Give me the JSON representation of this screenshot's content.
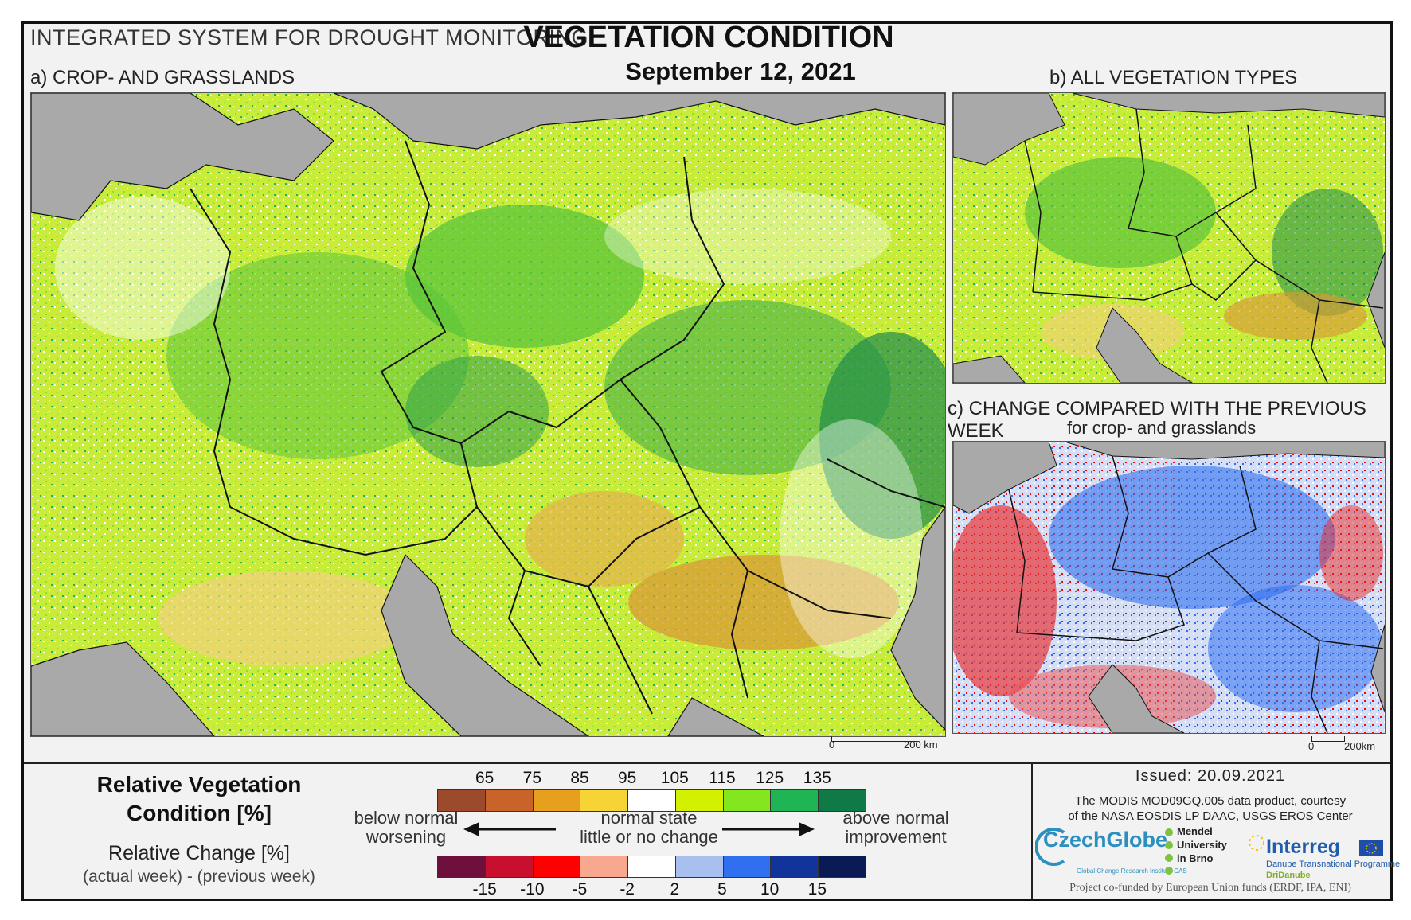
{
  "header": {
    "system_title": "INTEGRATED SYSTEM FOR DROUGHT MONITORING",
    "title": "VEGETATION CONDITION",
    "date": "September 12, 2021"
  },
  "panels": {
    "a_label": "a) CROP- AND GRASSLANDS",
    "b_label": "b) ALL VEGETATION TYPES",
    "c_label": "c) CHANGE COMPARED WITH THE PREVIOUS WEEK",
    "c_sublabel": "for crop- and grasslands"
  },
  "scale": {
    "a_zero": "0",
    "a_length": "200 km",
    "c_zero": "0",
    "c_length": "200km"
  },
  "legend": {
    "rvc_title_line1": "Relative Vegetation",
    "rvc_title_line2": "Condition [%]",
    "rc_title": "Relative Change [%]",
    "rc_subtitle": "(actual week) - (previous week)",
    "left_note_line1": "below normal",
    "left_note_line2": "worsening",
    "center_note_line1": "normal state",
    "center_note_line2": "little or no change",
    "right_note_line1": "above normal",
    "right_note_line2": "improvement",
    "rvc_ticks": [
      "65",
      "75",
      "85",
      "95",
      "105",
      "115",
      "125",
      "135"
    ],
    "rvc_colors": [
      "#9c4a2c",
      "#c8642a",
      "#e6a01e",
      "#f6d436",
      "#ffffff",
      "#d2f000",
      "#84e61e",
      "#1fb454",
      "#0f7a46"
    ],
    "rc_ticks": [
      "-15",
      "-10",
      "-5",
      "-2",
      "2",
      "5",
      "10",
      "15"
    ],
    "rc_colors": [
      "#6e0f3c",
      "#c8102e",
      "#ff0000",
      "#f7a88e",
      "#ffffff",
      "#a9bff0",
      "#2f6ff0",
      "#10349a",
      "#0a1a55"
    ]
  },
  "footer": {
    "issued": "Issued: 20.09.2021",
    "courtesy_line1": "The MODIS MOD09GQ.005 data product, courtesy",
    "courtesy_line2": "of the NASA EOSDIS LP DAAC, USGS EROS Center",
    "funded": "Project co-funded by European Union funds (ERDF, IPA, ENI)",
    "logo_czechglobe": "CzechGlobe",
    "logo_czechglobe_sub": "Global Change Research Institute CAS",
    "logo_mendel_line1": "Mendel",
    "logo_mendel_line2": "University",
    "logo_mendel_line3": "in Brno",
    "logo_interreg": "Interreg",
    "logo_interreg_sub": "Danube Transnational Programme",
    "logo_dridanube": "DriDanube"
  }
}
